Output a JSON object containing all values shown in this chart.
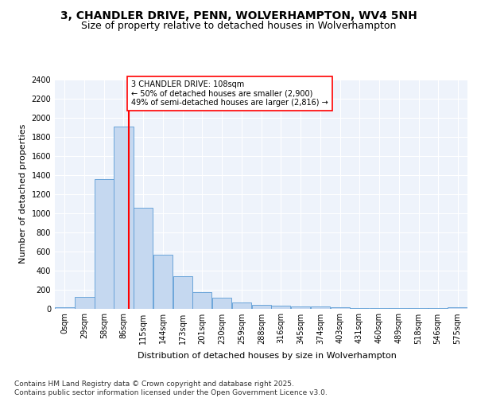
{
  "title": "3, CHANDLER DRIVE, PENN, WOLVERHAMPTON, WV4 5NH",
  "subtitle": "Size of property relative to detached houses in Wolverhampton",
  "xlabel": "Distribution of detached houses by size in Wolverhampton",
  "ylabel": "Number of detached properties",
  "bar_color": "#c5d8f0",
  "bar_edge_color": "#5b9bd5",
  "background_color": "#eef3fb",
  "grid_color": "#ffffff",
  "annotation_text": "3 CHANDLER DRIVE: 108sqm\n← 50% of detached houses are smaller (2,900)\n49% of semi-detached houses are larger (2,816) →",
  "vline_x": 108,
  "vline_color": "red",
  "categories": [
    "0sqm",
    "29sqm",
    "58sqm",
    "86sqm",
    "115sqm",
    "144sqm",
    "173sqm",
    "201sqm",
    "230sqm",
    "259sqm",
    "288sqm",
    "316sqm",
    "345sqm",
    "374sqm",
    "403sqm",
    "431sqm",
    "460sqm",
    "489sqm",
    "518sqm",
    "546sqm",
    "575sqm"
  ],
  "bin_edges": [
    0,
    29,
    58,
    86,
    115,
    144,
    173,
    201,
    230,
    259,
    288,
    316,
    345,
    374,
    403,
    431,
    460,
    489,
    518,
    546,
    575
  ],
  "values": [
    15,
    125,
    1355,
    1910,
    1055,
    560,
    335,
    170,
    110,
    65,
    40,
    30,
    25,
    20,
    10,
    5,
    5,
    5,
    5,
    2,
    10
  ],
  "ylim": [
    0,
    2400
  ],
  "yticks": [
    0,
    200,
    400,
    600,
    800,
    1000,
    1200,
    1400,
    1600,
    1800,
    2000,
    2200,
    2400
  ],
  "footer": "Contains HM Land Registry data © Crown copyright and database right 2025.\nContains public sector information licensed under the Open Government Licence v3.0.",
  "title_fontsize": 10,
  "subtitle_fontsize": 9,
  "axis_label_fontsize": 8,
  "tick_fontsize": 7,
  "footer_fontsize": 6.5,
  "annot_fontsize": 7
}
